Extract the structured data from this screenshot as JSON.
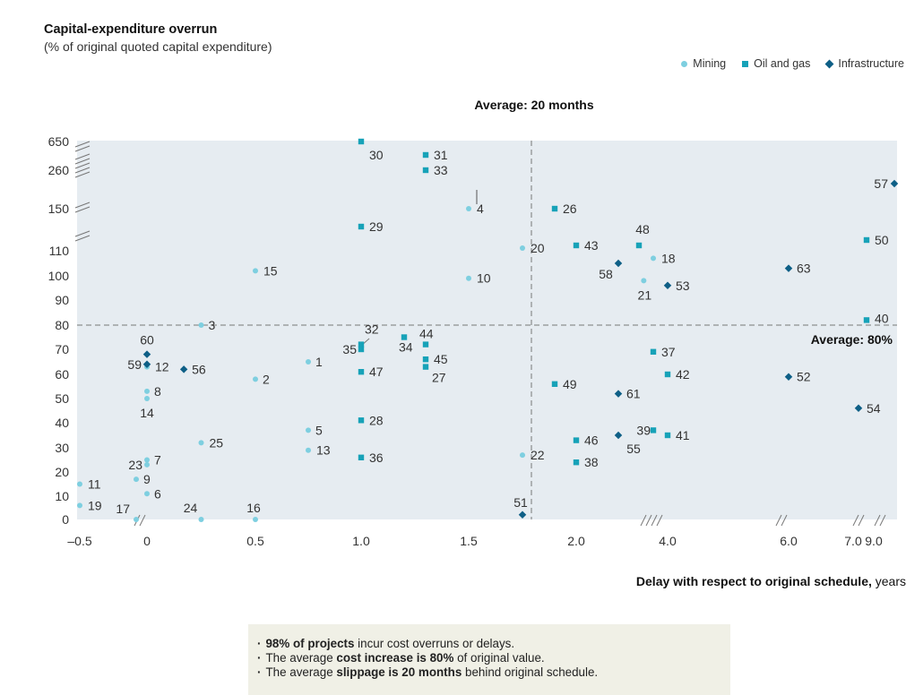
{
  "chart_data": {
    "type": "scatter",
    "title": "Capital-expenditure overrun",
    "subtitle": "(% of original quoted capital expenditure)",
    "xlabel_bold": "Delay with respect to original schedule,",
    "xlabel_unit": " years",
    "x_ticks": [
      "–0.5",
      "0",
      "0.5",
      "1.0",
      "1.5",
      "2.0",
      "4.0",
      "6.0",
      "7.0",
      "9.0"
    ],
    "y_ticks": [
      "0",
      "10",
      "20",
      "30",
      "40",
      "50",
      "60",
      "70",
      "80",
      "90",
      "100",
      "110",
      "150",
      "260",
      "650"
    ],
    "x_axis_breaks": true,
    "y_axis_breaks": true,
    "average_delay_label": "Average: 20 months",
    "average_overrun_label": "Average: 80%",
    "legend": [
      "Mining",
      "Oil and gas",
      "Infrastructure"
    ],
    "series": [
      {
        "name": "Mining",
        "color": "#7ecfe0",
        "points": [
          {
            "id": "1",
            "x": 0.75,
            "y": 65
          },
          {
            "id": "2",
            "x": 0.5,
            "y": 58
          },
          {
            "id": "3",
            "x": 0.25,
            "y": 80
          },
          {
            "id": "4",
            "x": 1.5,
            "y": 150
          },
          {
            "id": "5",
            "x": 0.75,
            "y": 37
          },
          {
            "id": "6",
            "x": 0,
            "y": 11
          },
          {
            "id": "7",
            "x": 0,
            "y": 25
          },
          {
            "id": "8",
            "x": 0,
            "y": 53
          },
          {
            "id": "9",
            "x": -0.08,
            "y": 17
          },
          {
            "id": "10",
            "x": 1.5,
            "y": 99
          },
          {
            "id": "11",
            "x": -0.5,
            "y": 15
          },
          {
            "id": "12",
            "x": 0,
            "y": 63
          },
          {
            "id": "13",
            "x": 0.75,
            "y": 29
          },
          {
            "id": "14",
            "x": 0,
            "y": 50
          },
          {
            "id": "15",
            "x": 0.5,
            "y": 102
          },
          {
            "id": "16",
            "x": 0.5,
            "y": 0
          },
          {
            "id": "17",
            "x": -0.08,
            "y": 0
          },
          {
            "id": "18",
            "x": 3.8,
            "y": 107
          },
          {
            "id": "19",
            "x": -0.5,
            "y": 6
          },
          {
            "id": "20",
            "x": 1.75,
            "y": 111
          },
          {
            "id": "21",
            "x": 3.6,
            "y": 98
          },
          {
            "id": "22",
            "x": 1.75,
            "y": 27
          },
          {
            "id": "23",
            "x": 0,
            "y": 23
          },
          {
            "id": "24",
            "x": 0.25,
            "y": 0
          },
          {
            "id": "25",
            "x": 0.25,
            "y": 32
          }
        ]
      },
      {
        "name": "Oil and gas",
        "color": "#17a2b8",
        "points": [
          {
            "id": "26",
            "x": 1.9,
            "y": 150
          },
          {
            "id": "27",
            "x": 1.3,
            "y": 63
          },
          {
            "id": "28",
            "x": 1.0,
            "y": 41
          },
          {
            "id": "29",
            "x": 1.0,
            "y": 125
          },
          {
            "id": "30",
            "x": 1.0,
            "y": 650
          },
          {
            "id": "31",
            "x": 1.3,
            "y": 270
          },
          {
            "id": "32",
            "x": 1.0,
            "y": 72
          },
          {
            "id": "33",
            "x": 1.3,
            "y": 260
          },
          {
            "id": "34",
            "x": 1.2,
            "y": 75
          },
          {
            "id": "35",
            "x": 1.0,
            "y": 70
          },
          {
            "id": "36",
            "x": 1.0,
            "y": 26
          },
          {
            "id": "37",
            "x": 3.8,
            "y": 69
          },
          {
            "id": "38",
            "x": 2.0,
            "y": 24
          },
          {
            "id": "39",
            "x": 3.8,
            "y": 37
          },
          {
            "id": "40",
            "x": 9.0,
            "y": 82
          },
          {
            "id": "41",
            "x": 4.0,
            "y": 35
          },
          {
            "id": "42",
            "x": 4.0,
            "y": 60
          },
          {
            "id": "43",
            "x": 2.0,
            "y": 112
          },
          {
            "id": "44",
            "x": 1.3,
            "y": 72
          },
          {
            "id": "45",
            "x": 1.3,
            "y": 66
          },
          {
            "id": "46",
            "x": 2.0,
            "y": 33
          },
          {
            "id": "47",
            "x": 1.0,
            "y": 61
          },
          {
            "id": "48",
            "x": 3.5,
            "y": 112
          },
          {
            "id": "49",
            "x": 1.9,
            "y": 56
          },
          {
            "id": "50",
            "x": 9.0,
            "y": 114
          }
        ]
      },
      {
        "name": "Infrastructure",
        "color": "#0e5f86",
        "points": [
          {
            "id": "51",
            "x": 1.75,
            "y": 2
          },
          {
            "id": "52",
            "x": 6.0,
            "y": 59
          },
          {
            "id": "53",
            "x": 4.0,
            "y": 96
          },
          {
            "id": "54",
            "x": 7.0,
            "y": 46
          },
          {
            "id": "55",
            "x": 3.0,
            "y": 35
          },
          {
            "id": "56",
            "x": 0.17,
            "y": 62
          },
          {
            "id": "57",
            "x": 9.5,
            "y": 200
          },
          {
            "id": "58",
            "x": 3.0,
            "y": 105
          },
          {
            "id": "59",
            "x": 0,
            "y": 64
          },
          {
            "id": "60",
            "x": 0,
            "y": 68
          },
          {
            "id": "61",
            "x": 3.0,
            "y": 52
          },
          {
            "id": "63",
            "x": 6.0,
            "y": 103
          }
        ]
      }
    ]
  },
  "notes": [
    {
      "bold": "98% of projects",
      "pre": "",
      "post": " incur cost overruns or delays."
    },
    {
      "pre": "The average ",
      "bold": "cost increase is 80%",
      "post": " of original value."
    },
    {
      "pre": "The average ",
      "bold": "slippage is 20 months",
      "post": " behind original schedule."
    }
  ]
}
